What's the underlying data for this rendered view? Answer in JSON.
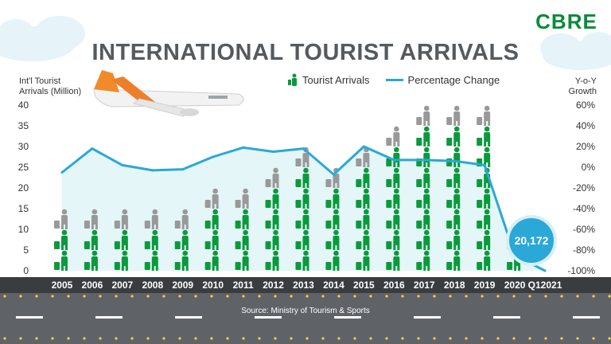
{
  "brand": {
    "logo": "CBRE",
    "color": "#0a8a3a"
  },
  "title": "INTERNATIONAL TOURIST ARRIVALS",
  "source": "Source: Ministry of Tourism & Sports",
  "callout": {
    "label": "20,172",
    "color": "#2aa8d8"
  },
  "legend": {
    "arrivals": "Tourist Arrivals",
    "change": "Percentage Change"
  },
  "colors": {
    "arrivals": "#0a9a3c",
    "arrivals_partial": "#999999",
    "change": "#2aa8d8",
    "area": "#dff4f6"
  },
  "icons": {
    "arrivals": "traveler-with-suitcase-icon",
    "plane": "airplane-icon"
  },
  "chart_data": {
    "type": "bar",
    "categories": [
      "2005",
      "2006",
      "2007",
      "2008",
      "2009",
      "2010",
      "2011",
      "2012",
      "2013",
      "2014",
      "2015",
      "2016",
      "2017",
      "2018",
      "2019",
      "2020",
      "Q12021"
    ],
    "series": [
      {
        "name": "Tourist Arrivals",
        "axis": "left",
        "values": [
          11.5,
          13.8,
          14.5,
          14.6,
          14.2,
          15.9,
          19.2,
          22.4,
          26.5,
          24.8,
          29.9,
          32.6,
          35.6,
          38.2,
          39.9,
          6.7,
          0.02
        ]
      },
      {
        "name": "Percentage Change",
        "axis": "right",
        "type": "line",
        "values": [
          -5,
          18,
          2,
          -3,
          -2,
          10,
          19,
          15,
          18,
          -7,
          20,
          7,
          7,
          6,
          2,
          -85,
          -100
        ]
      }
    ],
    "ylabel_left": "Int'l Tourist\nArrivals (Million)",
    "ylabel_right": "Y-o-Y\nGrowth",
    "ylim_left": [
      0,
      40
    ],
    "ylim_right": [
      -100,
      60
    ],
    "yticks_left": [
      "0",
      "5",
      "10",
      "15",
      "20",
      "25",
      "30",
      "35",
      "40"
    ],
    "yticks_right": [
      "-100%",
      "-80%",
      "-60%",
      "-40%",
      "-20%",
      "0%",
      "20%",
      "40%",
      "60%"
    ],
    "grid": false,
    "legend_position": "top"
  }
}
